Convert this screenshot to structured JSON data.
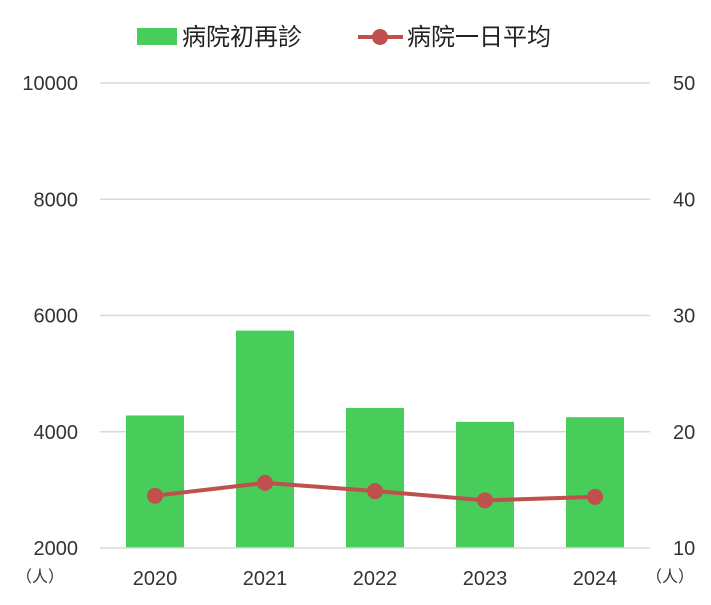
{
  "chart_data": {
    "type": "bar",
    "categories": [
      "2020",
      "2021",
      "2022",
      "2023",
      "2024"
    ],
    "series": [
      {
        "name": "病院初再診",
        "type": "bar",
        "axis": "left",
        "color": "#48cc5a",
        "values": [
          4280,
          5740,
          4410,
          4170,
          4250
        ]
      },
      {
        "name": "病院一日平均",
        "type": "line",
        "axis": "right",
        "color": "#c0504d",
        "values": [
          14.5,
          15.6,
          14.9,
          14.1,
          14.4
        ]
      }
    ],
    "y_left": {
      "ylim": [
        2000,
        10000
      ],
      "ticks": [
        "2000",
        "4000",
        "6000",
        "8000",
        "10000"
      ],
      "unit": "（人）"
    },
    "y_right": {
      "ylim": [
        10,
        50
      ],
      "ticks": [
        "10",
        "20",
        "30",
        "40",
        "50"
      ],
      "unit": "（人）"
    },
    "grid": true,
    "legend_position": "top"
  }
}
